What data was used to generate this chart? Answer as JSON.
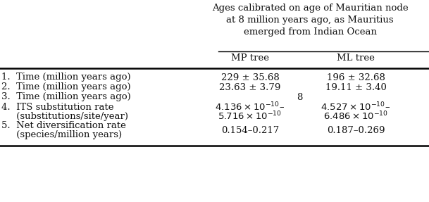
{
  "title_line1": "Ages calibrated on age of Mauritian node",
  "title_line2": "at 8 million years ago, as Mauritius",
  "title_line3": "emerged from Indian Ocean",
  "col_headers": [
    "MP tree",
    "ML tree"
  ],
  "rows": [
    {
      "label1": "1.  Time (million years ago)",
      "label2": null,
      "mp1": "229 ± 35.68",
      "mp2": null,
      "ml1": "196 ± 32.68",
      "ml2": null
    },
    {
      "label1": "2.  Time (million years ago)",
      "label2": null,
      "mp1": "23.63 ± 3.79",
      "mp2": null,
      "ml1": "19.11 ± 3.40",
      "ml2": null
    },
    {
      "label1": "3.  Time (million years ago)",
      "label2": null,
      "mp1": "",
      "mp2": null,
      "ml1": "8",
      "ml2": null,
      "center_value": true
    },
    {
      "label1": "4.  ITS substitution rate",
      "label2": "     (substitutions/site/year)",
      "mp1": "$4.136 \\times 10^{-10}$–",
      "mp2": "$5.716 \\times 10^{-10}$",
      "ml1": "$4.527 \\times 10^{-10}$–",
      "ml2": "$6.486 \\times 10^{-10}$"
    },
    {
      "label1": "5.  Net diversification rate",
      "label2": "     (species/million years)",
      "mp1": "0.154–0.217",
      "mp2": null,
      "ml1": "0.187–0.269",
      "ml2": null
    }
  ],
  "bg_color": "#ffffff",
  "text_color": "#111111",
  "font_size": 9.5
}
